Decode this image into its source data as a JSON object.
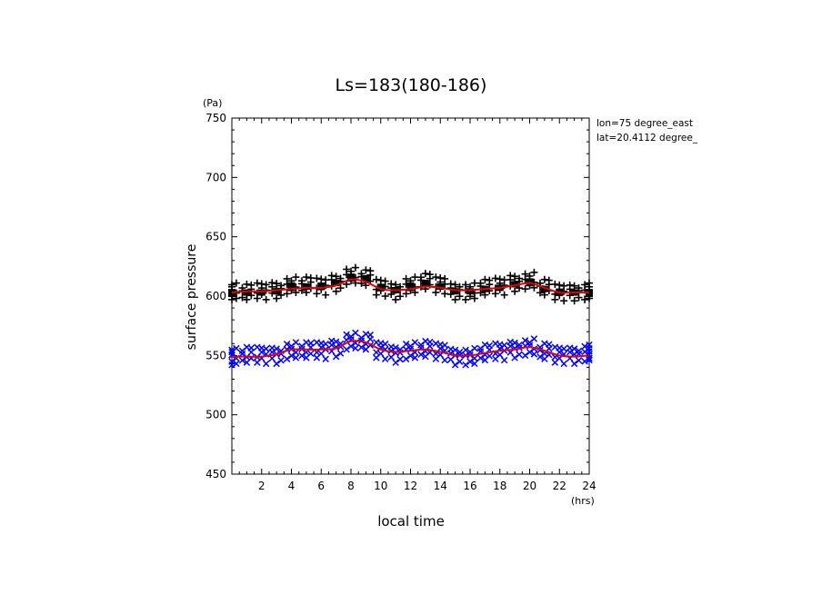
{
  "chart_data": {
    "type": "scatter",
    "title": "Ls=183(180-186)",
    "ylabel": "surface pressure",
    "yunit": "(Pa)",
    "xlabel": "local time",
    "xunit": "(hrs)",
    "annotations": [
      "lon=75 degree_east",
      "lat=20.4112 degree_"
    ],
    "xlim": [
      0,
      24
    ],
    "ylim": [
      450,
      750
    ],
    "xticks": [
      2,
      4,
      6,
      8,
      10,
      12,
      14,
      16,
      18,
      20,
      22,
      24
    ],
    "yticks": [
      450,
      500,
      550,
      600,
      650,
      700,
      750
    ],
    "grid": false,
    "colors": {
      "upper_markers": "#000000",
      "lower_markers": "#0000ff",
      "curve": "#e00000"
    },
    "series": [
      {
        "marker": "plus",
        "hours": [
          0,
          1,
          2,
          3,
          4,
          5,
          6,
          7,
          8,
          9,
          10,
          11,
          12,
          13,
          14,
          15,
          16,
          17,
          18,
          19,
          20,
          21,
          22,
          23,
          24
        ],
        "mean": [
          604,
          603,
          604,
          605,
          609,
          609,
          608,
          611,
          617,
          615,
          607,
          604,
          609,
          612,
          609,
          604,
          604,
          607,
          608,
          611,
          613,
          607,
          603,
          603,
          604
        ],
        "spread": 7
      },
      {
        "marker": "box",
        "x": [
          0,
          1,
          2,
          3,
          4,
          5,
          6,
          7,
          8,
          9,
          10,
          11,
          12,
          13,
          14,
          15,
          16,
          17,
          18,
          19,
          20,
          21,
          22,
          23,
          24
        ],
        "y": [
          603,
          603,
          603,
          604,
          609,
          608,
          608,
          611,
          616,
          615,
          607,
          605,
          609,
          611,
          608,
          604,
          604,
          606,
          607,
          610,
          612,
          606,
          603,
          603,
          603
        ]
      },
      {
        "marker": "cross",
        "hours": [
          0,
          1,
          2,
          3,
          4,
          5,
          6,
          7,
          8,
          9,
          10,
          11,
          12,
          13,
          14,
          15,
          16,
          17,
          18,
          19,
          20,
          21,
          22,
          23,
          24
        ],
        "mean": [
          549,
          550,
          550,
          550,
          554,
          554,
          554,
          556,
          562,
          561,
          554,
          551,
          554,
          555,
          553,
          549,
          549,
          552,
          553,
          555,
          557,
          553,
          550,
          550,
          552
        ],
        "spread": 7
      },
      {
        "marker": "curve",
        "x": [
          0,
          1,
          2,
          3,
          4,
          5,
          6,
          7,
          8,
          9,
          10,
          11,
          12,
          13,
          14,
          15,
          16,
          17,
          18,
          19,
          20,
          21,
          22,
          23,
          24
        ],
        "y": [
          603,
          604,
          604,
          605,
          606,
          607,
          607,
          609,
          614,
          612,
          606,
          605,
          606,
          608,
          607,
          605,
          605,
          606,
          607,
          609,
          611,
          607,
          603,
          603,
          603
        ]
      },
      {
        "marker": "curve",
        "x": [
          0,
          1,
          2,
          3,
          4,
          5,
          6,
          7,
          8,
          9,
          10,
          11,
          12,
          13,
          14,
          15,
          16,
          17,
          18,
          19,
          20,
          21,
          22,
          23,
          24
        ],
        "y": [
          549,
          549,
          549,
          551,
          555,
          555,
          555,
          556,
          562,
          561,
          555,
          553,
          554,
          555,
          553,
          550,
          550,
          552,
          554,
          555,
          557,
          554,
          550,
          549,
          550
        ]
      }
    ]
  }
}
